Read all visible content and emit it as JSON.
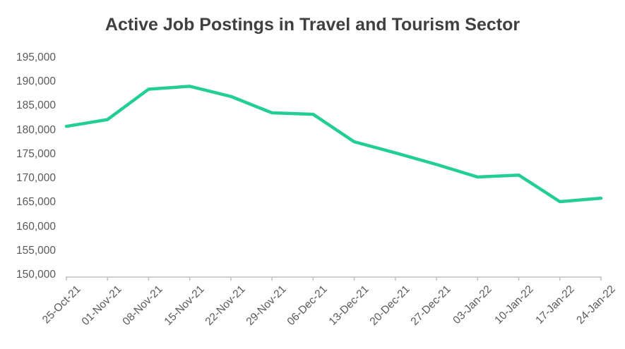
{
  "title": "Active Job Postings in Travel and Tourism Sector",
  "colors": {
    "line": "#23CD96",
    "title_text": "#404040",
    "axis_text": "#595959",
    "axis_line": "#BFBFBF",
    "background": "#FFFFFF"
  },
  "chart_data": {
    "type": "line",
    "title": "Active Job Postings in Travel and Tourism Sector",
    "xlabel": "",
    "ylabel": "",
    "grid": false,
    "legend": "none",
    "ylim": [
      150000,
      195000
    ],
    "ytick_step": 5000,
    "y_tick_labels_top_to_bottom": [
      "195,000",
      "190,000",
      "185,000",
      "180,000",
      "175,000",
      "170,000",
      "165,000",
      "160,000",
      "155,000",
      "150,000"
    ],
    "categories": [
      "25-Oct-21",
      "01-Nov-21",
      "08-Nov-21",
      "15-Nov-21",
      "22-Nov-21",
      "29-Nov-21",
      "06-Dec-21",
      "13-Dec-21",
      "20-Dec-21",
      "27-Dec-21",
      "03-Jan-22",
      "10-Jan-22",
      "17-Jan-22",
      "24-Jan-22"
    ],
    "series": [
      {
        "name": "Active Job Postings",
        "values": [
          180800,
          182200,
          188500,
          189100,
          187000,
          183600,
          183300,
          177600,
          175300,
          172900,
          170300,
          170700,
          165200,
          165900
        ]
      }
    ]
  }
}
